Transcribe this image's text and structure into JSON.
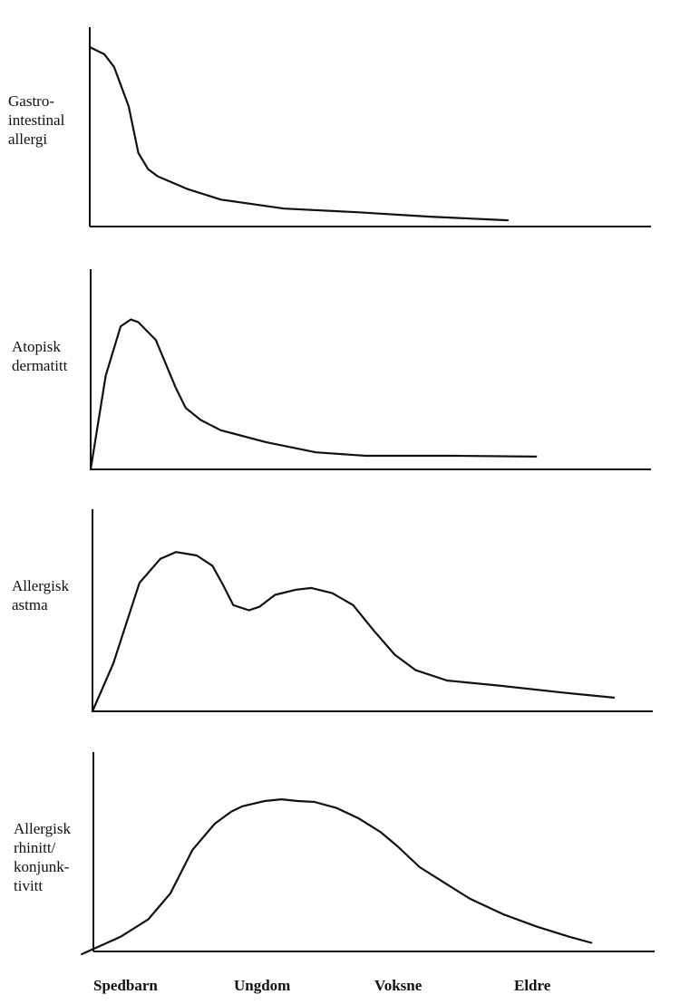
{
  "chart_data": [
    {
      "type": "line",
      "title": "",
      "ylabel_lines": [
        "Gastro-",
        "intestinal",
        "allergi"
      ],
      "x_range": [
        0,
        100
      ],
      "y_range": [
        0,
        100
      ],
      "points": [
        [
          0,
          100
        ],
        [
          3,
          96
        ],
        [
          5,
          89
        ],
        [
          8,
          67
        ],
        [
          10,
          41
        ],
        [
          12,
          32
        ],
        [
          14,
          28
        ],
        [
          20,
          21
        ],
        [
          27,
          15
        ],
        [
          40,
          10
        ],
        [
          55,
          8
        ],
        [
          70,
          5.5
        ],
        [
          86,
          3.5
        ]
      ]
    },
    {
      "type": "line",
      "title": "",
      "ylabel_lines": [
        "Atopisk",
        "dermatitt"
      ],
      "x_range": [
        0,
        100
      ],
      "y_range": [
        0,
        100
      ],
      "points": [
        [
          0,
          0
        ],
        [
          3,
          55
        ],
        [
          6,
          84
        ],
        [
          8,
          88
        ],
        [
          9.5,
          86.5
        ],
        [
          13,
          76
        ],
        [
          17,
          48
        ],
        [
          19,
          36
        ],
        [
          22,
          29
        ],
        [
          26,
          23
        ],
        [
          35,
          16
        ],
        [
          45,
          10
        ],
        [
          55,
          8
        ],
        [
          65,
          8
        ],
        [
          73,
          8
        ],
        [
          89,
          7.5
        ]
      ]
    },
    {
      "type": "line",
      "title": "",
      "ylabel_lines": [
        "Allergisk",
        "astma"
      ],
      "x_range": [
        0,
        100
      ],
      "y_range": [
        0,
        100
      ],
      "points": [
        [
          0,
          0
        ],
        [
          4,
          28
        ],
        [
          9,
          75
        ],
        [
          13,
          89
        ],
        [
          16,
          93
        ],
        [
          20,
          91
        ],
        [
          23,
          85
        ],
        [
          25,
          74
        ],
        [
          27,
          62
        ],
        [
          30,
          59
        ],
        [
          32,
          61
        ],
        [
          35,
          68
        ],
        [
          39,
          71
        ],
        [
          42,
          72
        ],
        [
          46,
          69
        ],
        [
          50,
          62
        ],
        [
          54,
          47
        ],
        [
          58,
          33
        ],
        [
          62,
          24
        ],
        [
          68,
          18
        ],
        [
          78,
          15
        ],
        [
          90,
          11
        ],
        [
          100,
          8
        ]
      ]
    },
    {
      "type": "line",
      "title": "",
      "ylabel_lines": [
        "Allergisk",
        "rhinitt/",
        "konjunk-",
        "tivitt"
      ],
      "x_range": [
        0,
        100
      ],
      "y_range": [
        0,
        100
      ],
      "points": [
        [
          2,
          0
        ],
        [
          9,
          10
        ],
        [
          14,
          20
        ],
        [
          18,
          35
        ],
        [
          22,
          60
        ],
        [
          26,
          75
        ],
        [
          29,
          82
        ],
        [
          31,
          85
        ],
        [
          35,
          88
        ],
        [
          38,
          89
        ],
        [
          41,
          88
        ],
        [
          44,
          87.5
        ],
        [
          48,
          84
        ],
        [
          52,
          78
        ],
        [
          56,
          70
        ],
        [
          59,
          62
        ],
        [
          63,
          50
        ],
        [
          67,
          42
        ],
        [
          72,
          32
        ],
        [
          78,
          23
        ],
        [
          84,
          16
        ],
        [
          90,
          10
        ],
        [
          94,
          6.5
        ]
      ]
    }
  ],
  "x_axis_categories": [
    "Spedbarn",
    "Ungdom",
    "Voksne",
    "Eldre"
  ],
  "colors": {
    "line": "#111111",
    "axis": "#111111",
    "background": "#ffffff"
  }
}
